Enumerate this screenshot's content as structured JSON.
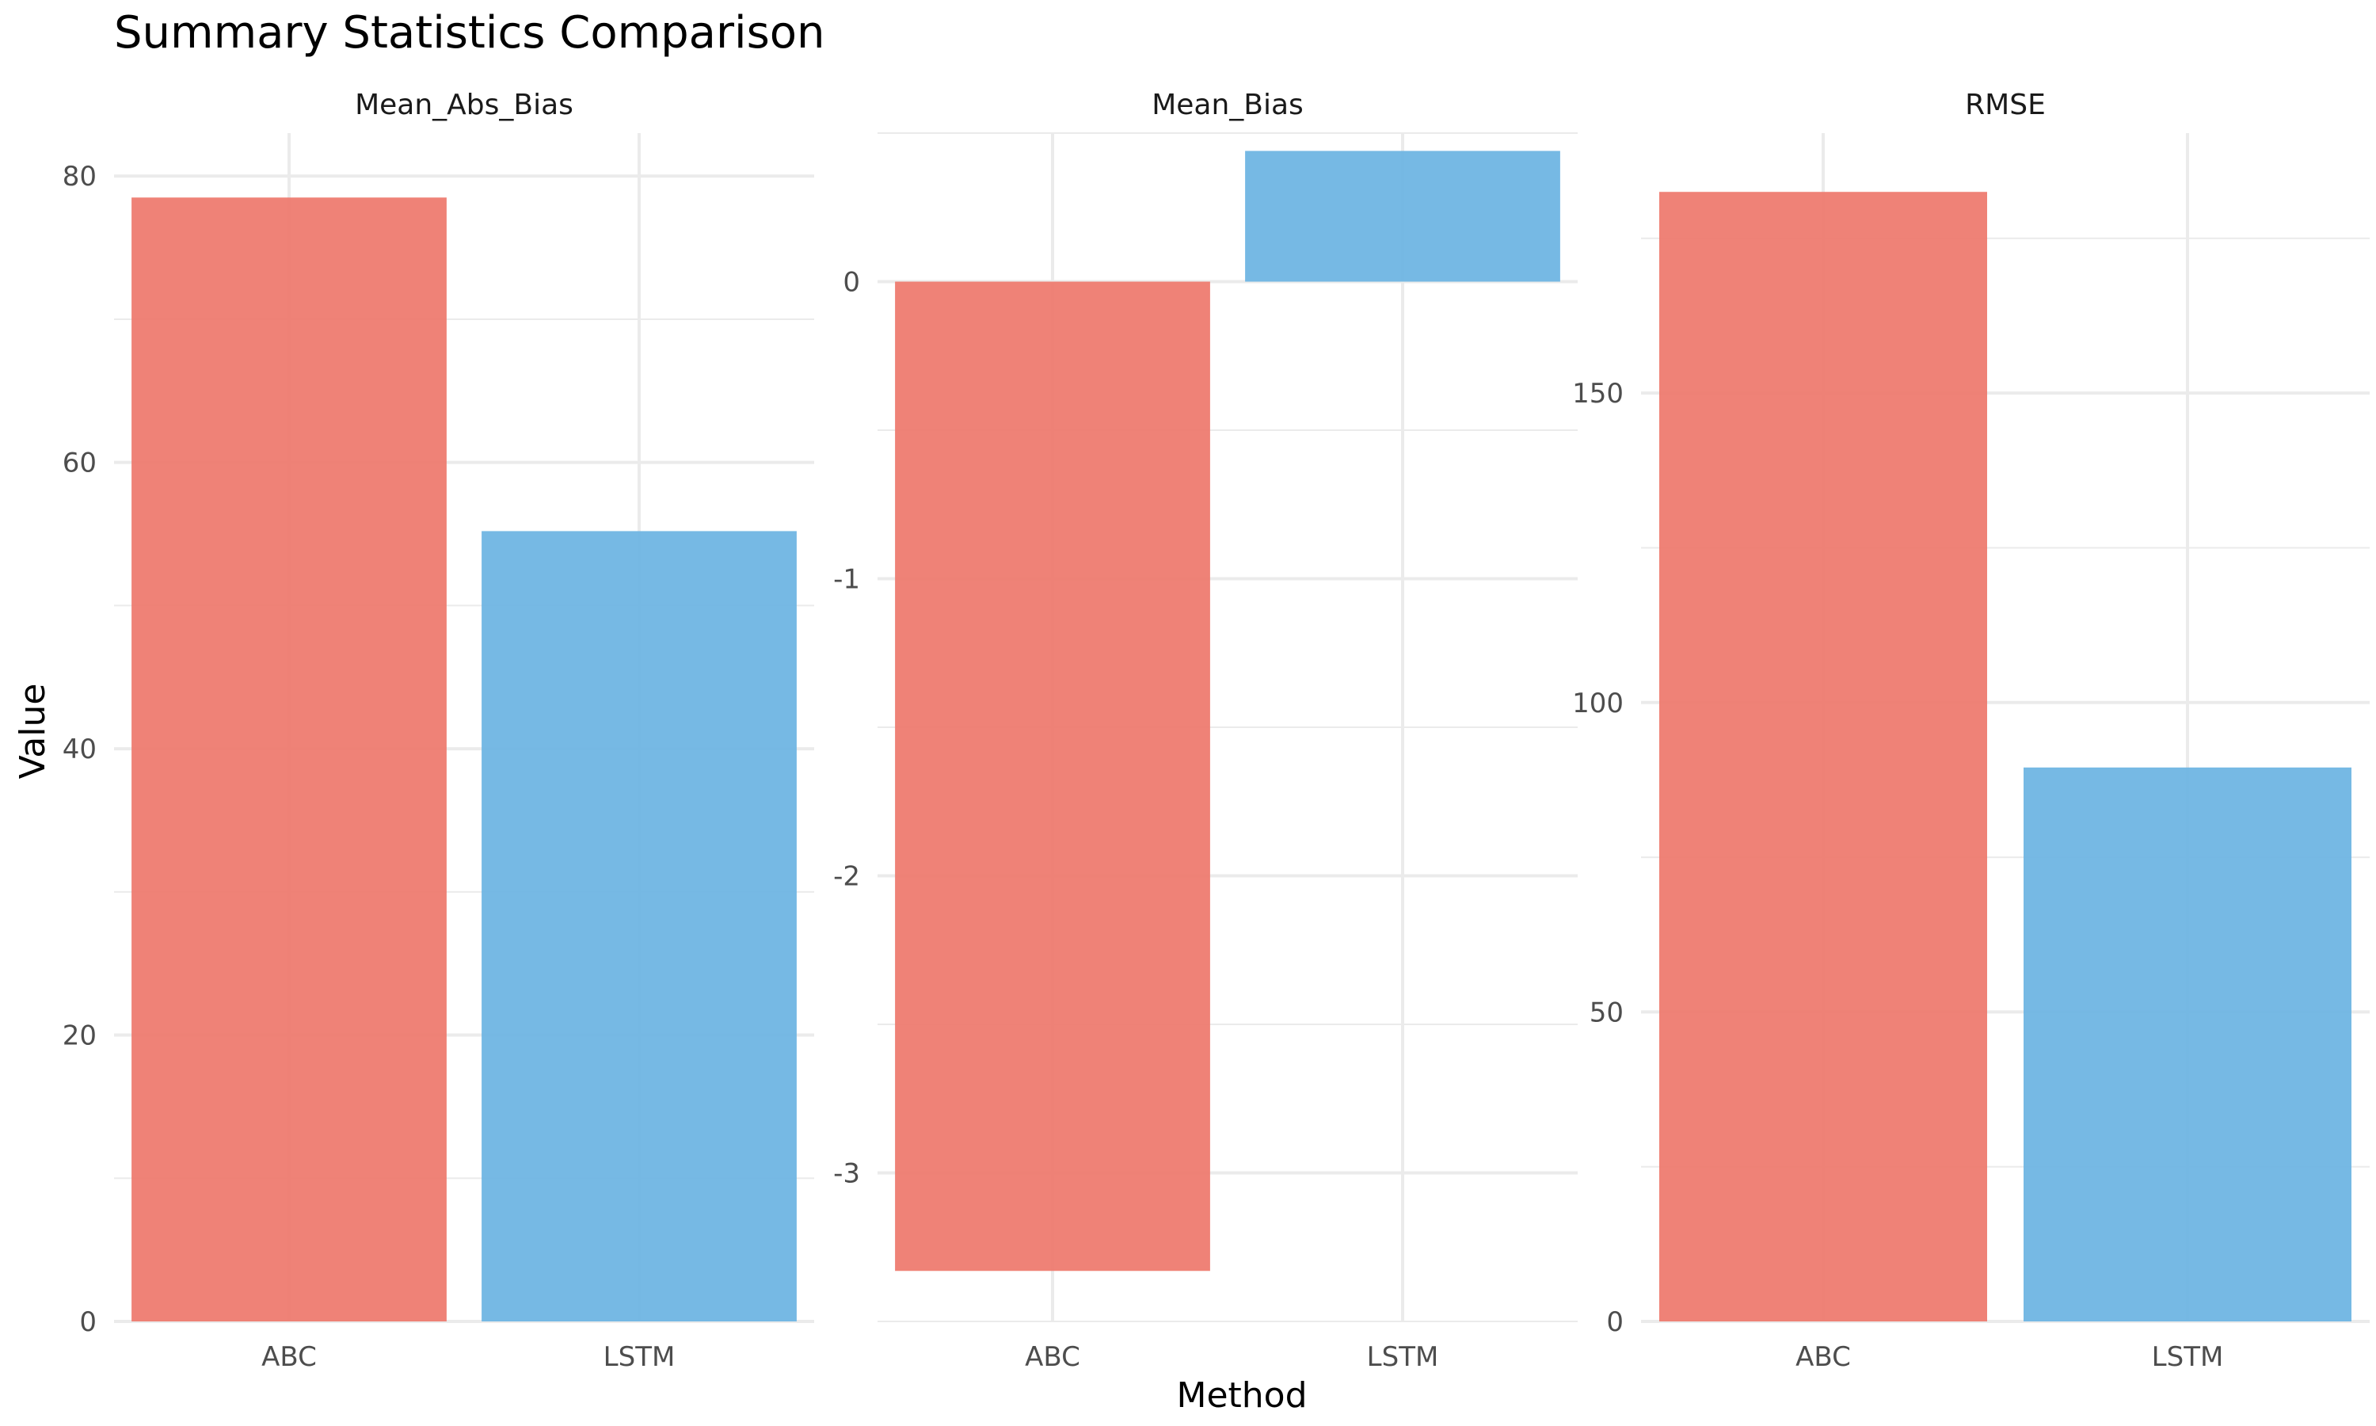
{
  "chart_data": {
    "type": "bar",
    "title": "Summary Statistics Comparison",
    "xlabel": "Method",
    "ylabel": "Value",
    "categories": [
      "ABC",
      "LSTM"
    ],
    "colors": {
      "ABC": "#EE7B70",
      "LSTM": "#6FB5E3"
    },
    "grid": true,
    "legend": "none",
    "facets": [
      {
        "name": "Mean_Abs_Bias",
        "values": [
          78.5,
          55.2
        ],
        "ylim": [
          0,
          83
        ],
        "yticks": [
          0,
          20,
          40,
          60,
          80
        ],
        "ytick_labels": [
          "0",
          "20",
          "40",
          "60",
          "80"
        ]
      },
      {
        "name": "Mean_Bias",
        "values": [
          -3.33,
          0.44
        ],
        "ylim": [
          -3.5,
          0.5
        ],
        "yticks": [
          -3,
          -2,
          -1,
          0
        ],
        "ytick_labels": [
          "-3",
          "-2",
          "-1",
          "0"
        ]
      },
      {
        "name": "RMSE",
        "values": [
          182.5,
          89.5
        ],
        "ylim": [
          0,
          192
        ],
        "yticks": [
          0,
          50,
          100,
          150
        ],
        "ytick_labels": [
          "0",
          "50",
          "100",
          "150"
        ]
      }
    ]
  }
}
